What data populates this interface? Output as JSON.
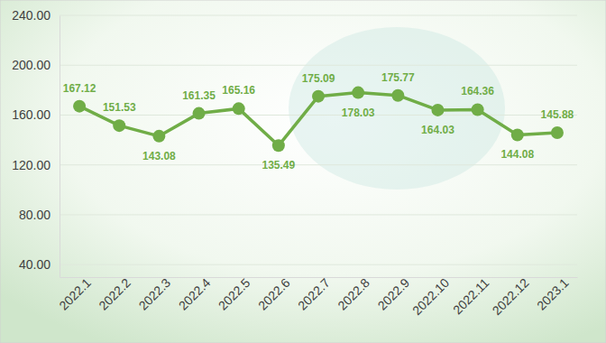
{
  "chart_data": {
    "type": "line",
    "categories": [
      "2022.1",
      "2022.2",
      "2022.3",
      "2022.4",
      "2022.5",
      "2022.6",
      "2022.7",
      "2022.8",
      "2022.9",
      "2022.10",
      "2022.11",
      "2022.12",
      "2023.1"
    ],
    "values": [
      167.12,
      151.53,
      143.08,
      161.35,
      165.16,
      135.49,
      175.09,
      178.03,
      175.77,
      164.03,
      164.36,
      144.08,
      145.88
    ],
    "color": "#70ad47",
    "marker": "circle",
    "data_labels": true,
    "grid": true,
    "ylim": [
      30,
      240
    ],
    "yticks": [
      {
        "value": 40,
        "label": "40.00"
      },
      {
        "value": 80,
        "label": "80.00"
      },
      {
        "value": 120,
        "label": "120.00"
      },
      {
        "value": 160,
        "label": "160.00"
      },
      {
        "value": 200,
        "label": "200.00"
      },
      {
        "value": 240,
        "label": "240.00"
      }
    ]
  }
}
